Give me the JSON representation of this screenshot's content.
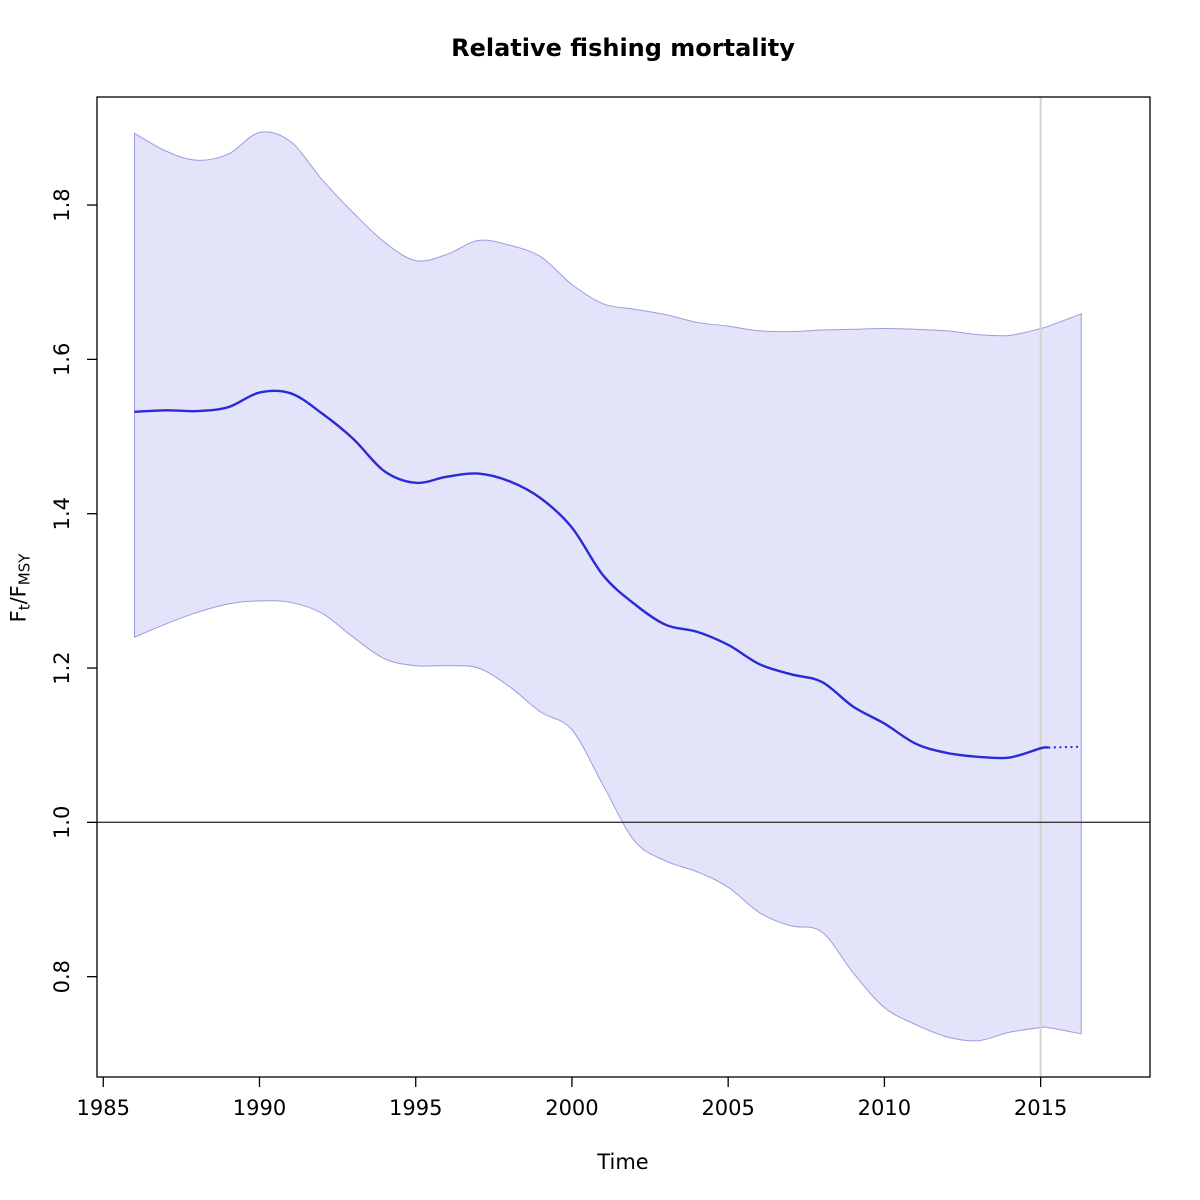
{
  "chart_data": {
    "type": "line",
    "title": "Relative fishing mortality",
    "xlabel": "Time",
    "ylabel_parts": [
      {
        "text": "F",
        "sub": false
      },
      {
        "text": "t",
        "sub": true
      },
      {
        "text": "/",
        "sub": false
      },
      {
        "text": "F",
        "sub": false
      },
      {
        "text": "MSY",
        "sub": true
      }
    ],
    "xlim": [
      1984.8,
      2018.5
    ],
    "ylim": [
      0.67,
      1.94
    ],
    "x_ticks": [
      1985,
      1990,
      1995,
      2000,
      2005,
      2010,
      2015
    ],
    "y_ticks": [
      "0.8",
      "1.0",
      "1.2",
      "1.4",
      "1.6",
      "1.8"
    ],
    "grid": false,
    "legend": "none",
    "reference_line_y": 1.0,
    "vertical_line_x": 2015,
    "solid_until": 2015.25,
    "x": [
      1986,
      1987,
      1988,
      1989,
      1990,
      1991,
      1992,
      1993,
      1994,
      1995,
      1996,
      1997,
      1998,
      1999,
      2000,
      2001,
      2002,
      2003,
      2004,
      2005,
      2006,
      2007,
      2008,
      2009,
      2010,
      2011,
      2012,
      2013,
      2014,
      2015,
      2015.25,
      2016.3
    ],
    "series": [
      {
        "name": "median_F_over_Fmsy",
        "values": [
          1.532,
          1.534,
          1.533,
          1.538,
          1.557,
          1.556,
          1.53,
          1.497,
          1.455,
          1.44,
          1.448,
          1.452,
          1.442,
          1.42,
          1.382,
          1.32,
          1.283,
          1.256,
          1.247,
          1.23,
          1.205,
          1.192,
          1.182,
          1.15,
          1.128,
          1.102,
          1.09,
          1.085,
          1.084,
          1.096,
          1.097,
          1.098
        ]
      },
      {
        "name": "ci_upper",
        "values": [
          1.893,
          1.87,
          1.858,
          1.866,
          1.894,
          1.882,
          1.833,
          1.79,
          1.752,
          1.728,
          1.736,
          1.754,
          1.748,
          1.733,
          1.697,
          1.672,
          1.665,
          1.658,
          1.648,
          1.643,
          1.637,
          1.636,
          1.638,
          1.639,
          1.64,
          1.639,
          1.637,
          1.632,
          1.631,
          1.64,
          1.643,
          1.659
        ]
      },
      {
        "name": "ci_lower",
        "values": [
          1.24,
          1.257,
          1.272,
          1.283,
          1.287,
          1.285,
          1.271,
          1.24,
          1.212,
          1.203,
          1.203,
          1.2,
          1.176,
          1.143,
          1.12,
          1.048,
          0.976,
          0.95,
          0.936,
          0.916,
          0.883,
          0.866,
          0.858,
          0.805,
          0.76,
          0.738,
          0.722,
          0.717,
          0.728,
          0.734,
          0.734,
          0.726
        ]
      }
    ],
    "colors": {
      "median_line": "#2b2bd6",
      "band_fill": "#e3e3fa",
      "band_edge": "#9c9ce0",
      "reference_line": "#3a3a3a",
      "vertical_line": "#d4d4d4",
      "axis": "#000000",
      "tick_text": "#000000"
    }
  }
}
